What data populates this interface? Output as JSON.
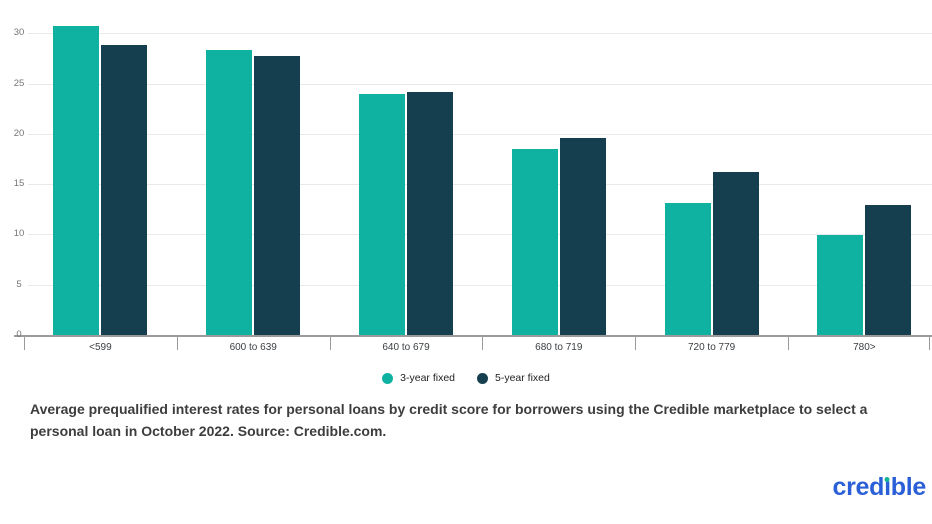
{
  "chart_data": {
    "type": "bar",
    "title": "",
    "xlabel": "",
    "ylabel": "",
    "categories": [
      "<599",
      "600 to 639",
      "640 to 679",
      "680 to 719",
      "720 to 779",
      "780>"
    ],
    "series": [
      {
        "name": "3-year fixed",
        "color": "#0FB2A1",
        "values": [
          30.7,
          28.3,
          24.0,
          18.5,
          13.1,
          9.9
        ]
      },
      {
        "name": "5-year fixed",
        "color": "#153F4E",
        "values": [
          28.8,
          27.7,
          24.2,
          19.6,
          16.2,
          12.9
        ]
      }
    ],
    "y_ticks": [
      0,
      5,
      10,
      15,
      20,
      25,
      30
    ],
    "ylim": [
      0,
      32.5
    ],
    "grid": true,
    "legend_position": "bottom"
  },
  "caption": "Average prequalified interest rates for personal loans by credit score for borrowers using the Credible marketplace to select a personal loan in October 2022. Source: Credible.com.",
  "logo": {
    "text": "credible",
    "brand_blue": "#2A5FD7",
    "dot_teal": "#12B497"
  },
  "colors": {
    "grid": "#E9E9E9",
    "axis": "#9B9B9B",
    "tick_label": "#757575",
    "category_label": "#3C4043",
    "caption_text": "#3D3D3D"
  }
}
